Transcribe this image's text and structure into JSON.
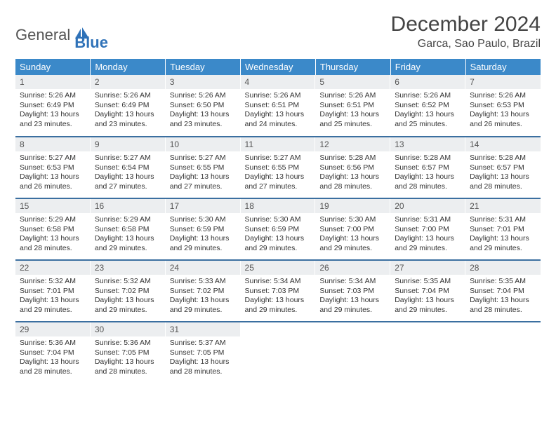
{
  "logo": {
    "word1": "General",
    "word2": "Blue",
    "color1": "#555555",
    "color2": "#2f72b8"
  },
  "title": "December 2024",
  "location": "Garca, Sao Paulo, Brazil",
  "colors": {
    "header_bg": "#3b89c9",
    "header_text": "#ffffff",
    "row_separator": "#3b6fa0",
    "daynum_bg": "#eceef0",
    "body_text": "#333333"
  },
  "weekdays": [
    "Sunday",
    "Monday",
    "Tuesday",
    "Wednesday",
    "Thursday",
    "Friday",
    "Saturday"
  ],
  "days": [
    {
      "n": 1,
      "sr": "5:26 AM",
      "ss": "6:49 PM",
      "dl": "13 hours and 23 minutes."
    },
    {
      "n": 2,
      "sr": "5:26 AM",
      "ss": "6:49 PM",
      "dl": "13 hours and 23 minutes."
    },
    {
      "n": 3,
      "sr": "5:26 AM",
      "ss": "6:50 PM",
      "dl": "13 hours and 23 minutes."
    },
    {
      "n": 4,
      "sr": "5:26 AM",
      "ss": "6:51 PM",
      "dl": "13 hours and 24 minutes."
    },
    {
      "n": 5,
      "sr": "5:26 AM",
      "ss": "6:51 PM",
      "dl": "13 hours and 25 minutes."
    },
    {
      "n": 6,
      "sr": "5:26 AM",
      "ss": "6:52 PM",
      "dl": "13 hours and 25 minutes."
    },
    {
      "n": 7,
      "sr": "5:26 AM",
      "ss": "6:53 PM",
      "dl": "13 hours and 26 minutes."
    },
    {
      "n": 8,
      "sr": "5:27 AM",
      "ss": "6:53 PM",
      "dl": "13 hours and 26 minutes."
    },
    {
      "n": 9,
      "sr": "5:27 AM",
      "ss": "6:54 PM",
      "dl": "13 hours and 27 minutes."
    },
    {
      "n": 10,
      "sr": "5:27 AM",
      "ss": "6:55 PM",
      "dl": "13 hours and 27 minutes."
    },
    {
      "n": 11,
      "sr": "5:27 AM",
      "ss": "6:55 PM",
      "dl": "13 hours and 27 minutes."
    },
    {
      "n": 12,
      "sr": "5:28 AM",
      "ss": "6:56 PM",
      "dl": "13 hours and 28 minutes."
    },
    {
      "n": 13,
      "sr": "5:28 AM",
      "ss": "6:57 PM",
      "dl": "13 hours and 28 minutes."
    },
    {
      "n": 14,
      "sr": "5:28 AM",
      "ss": "6:57 PM",
      "dl": "13 hours and 28 minutes."
    },
    {
      "n": 15,
      "sr": "5:29 AM",
      "ss": "6:58 PM",
      "dl": "13 hours and 28 minutes."
    },
    {
      "n": 16,
      "sr": "5:29 AM",
      "ss": "6:58 PM",
      "dl": "13 hours and 29 minutes."
    },
    {
      "n": 17,
      "sr": "5:30 AM",
      "ss": "6:59 PM",
      "dl": "13 hours and 29 minutes."
    },
    {
      "n": 18,
      "sr": "5:30 AM",
      "ss": "6:59 PM",
      "dl": "13 hours and 29 minutes."
    },
    {
      "n": 19,
      "sr": "5:30 AM",
      "ss": "7:00 PM",
      "dl": "13 hours and 29 minutes."
    },
    {
      "n": 20,
      "sr": "5:31 AM",
      "ss": "7:00 PM",
      "dl": "13 hours and 29 minutes."
    },
    {
      "n": 21,
      "sr": "5:31 AM",
      "ss": "7:01 PM",
      "dl": "13 hours and 29 minutes."
    },
    {
      "n": 22,
      "sr": "5:32 AM",
      "ss": "7:01 PM",
      "dl": "13 hours and 29 minutes."
    },
    {
      "n": 23,
      "sr": "5:32 AM",
      "ss": "7:02 PM",
      "dl": "13 hours and 29 minutes."
    },
    {
      "n": 24,
      "sr": "5:33 AM",
      "ss": "7:02 PM",
      "dl": "13 hours and 29 minutes."
    },
    {
      "n": 25,
      "sr": "5:34 AM",
      "ss": "7:03 PM",
      "dl": "13 hours and 29 minutes."
    },
    {
      "n": 26,
      "sr": "5:34 AM",
      "ss": "7:03 PM",
      "dl": "13 hours and 29 minutes."
    },
    {
      "n": 27,
      "sr": "5:35 AM",
      "ss": "7:04 PM",
      "dl": "13 hours and 29 minutes."
    },
    {
      "n": 28,
      "sr": "5:35 AM",
      "ss": "7:04 PM",
      "dl": "13 hours and 28 minutes."
    },
    {
      "n": 29,
      "sr": "5:36 AM",
      "ss": "7:04 PM",
      "dl": "13 hours and 28 minutes."
    },
    {
      "n": 30,
      "sr": "5:36 AM",
      "ss": "7:05 PM",
      "dl": "13 hours and 28 minutes."
    },
    {
      "n": 31,
      "sr": "5:37 AM",
      "ss": "7:05 PM",
      "dl": "13 hours and 28 minutes."
    }
  ],
  "labels": {
    "sunrise": "Sunrise:",
    "sunset": "Sunset:",
    "daylight": "Daylight:"
  },
  "layout": {
    "first_weekday_index": 0,
    "weeks": 5
  }
}
